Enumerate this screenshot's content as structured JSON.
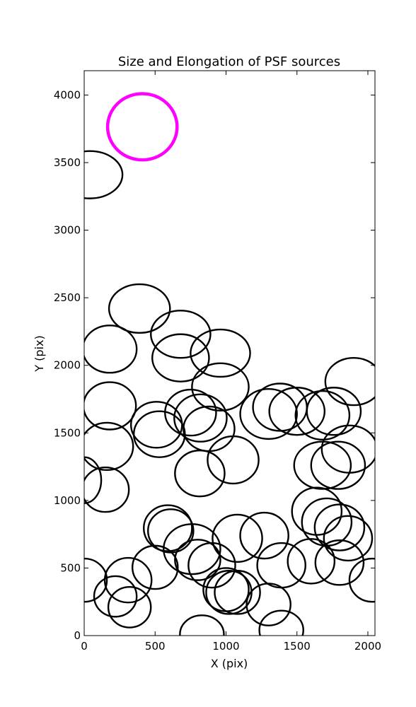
{
  "chart_data": {
    "type": "scatter",
    "title": "Size and Elongation of PSF sources",
    "xlabel": "X (pix)",
    "ylabel": "Y (pix)",
    "xlim": [
      0,
      2050
    ],
    "ylim": [
      0,
      4180
    ],
    "x_ticks": [
      0,
      500,
      1000,
      1500,
      2000
    ],
    "y_ticks": [
      0,
      500,
      1000,
      1500,
      2000,
      2500,
      3000,
      3500,
      4000
    ],
    "grid": false,
    "legend": "none",
    "colors": {
      "sources": "#000000",
      "reference": "#ff00ff",
      "axes": "#000000"
    },
    "reference_ellipse": {
      "x": 410,
      "y": 3765,
      "rx": 245,
      "ry": 245,
      "angle": 0
    },
    "ellipses": [
      {
        "x": 40,
        "y": 3410,
        "rx": 230,
        "ry": 175,
        "angle": 0
      },
      {
        "x": 390,
        "y": 2420,
        "rx": 215,
        "ry": 180,
        "angle": 0
      },
      {
        "x": 180,
        "y": 2120,
        "rx": 190,
        "ry": 175,
        "angle": 0
      },
      {
        "x": 680,
        "y": 2230,
        "rx": 210,
        "ry": 175,
        "angle": 0
      },
      {
        "x": 680,
        "y": 2055,
        "rx": 200,
        "ry": 175,
        "angle": 0
      },
      {
        "x": 960,
        "y": 2090,
        "rx": 210,
        "ry": 175,
        "angle": 0
      },
      {
        "x": 960,
        "y": 1840,
        "rx": 200,
        "ry": 175,
        "angle": 0
      },
      {
        "x": 1900,
        "y": 1880,
        "rx": 200,
        "ry": 175,
        "angle": 0
      },
      {
        "x": 180,
        "y": 1700,
        "rx": 185,
        "ry": 175,
        "angle": 0
      },
      {
        "x": 510,
        "y": 1560,
        "rx": 180,
        "ry": 170,
        "angle": 0
      },
      {
        "x": 530,
        "y": 1490,
        "rx": 180,
        "ry": 170,
        "angle": 0
      },
      {
        "x": 750,
        "y": 1650,
        "rx": 180,
        "ry": 170,
        "angle": 0
      },
      {
        "x": 820,
        "y": 1610,
        "rx": 185,
        "ry": 175,
        "angle": 0
      },
      {
        "x": 880,
        "y": 1530,
        "rx": 180,
        "ry": 165,
        "angle": 0
      },
      {
        "x": 1300,
        "y": 1640,
        "rx": 200,
        "ry": 185,
        "angle": 0
      },
      {
        "x": 1380,
        "y": 1690,
        "rx": 190,
        "ry": 175,
        "angle": 0
      },
      {
        "x": 1500,
        "y": 1660,
        "rx": 195,
        "ry": 175,
        "angle": 0
      },
      {
        "x": 1680,
        "y": 1630,
        "rx": 190,
        "ry": 180,
        "angle": 0
      },
      {
        "x": 1760,
        "y": 1660,
        "rx": 190,
        "ry": 175,
        "angle": 0
      },
      {
        "x": 160,
        "y": 1400,
        "rx": 185,
        "ry": 175,
        "angle": 0
      },
      {
        "x": 0,
        "y": 1150,
        "rx": 120,
        "ry": 170,
        "angle": 0
      },
      {
        "x": 150,
        "y": 1080,
        "rx": 165,
        "ry": 165,
        "angle": 0
      },
      {
        "x": 815,
        "y": 1200,
        "rx": 175,
        "ry": 170,
        "angle": 0
      },
      {
        "x": 1050,
        "y": 1300,
        "rx": 180,
        "ry": 175,
        "angle": 0
      },
      {
        "x": 1680,
        "y": 1260,
        "rx": 200,
        "ry": 175,
        "angle": 0
      },
      {
        "x": 1790,
        "y": 1260,
        "rx": 190,
        "ry": 175,
        "angle": 0
      },
      {
        "x": 1870,
        "y": 1380,
        "rx": 195,
        "ry": 175,
        "angle": 0
      },
      {
        "x": 590,
        "y": 795,
        "rx": 170,
        "ry": 170,
        "angle": 0
      },
      {
        "x": 610,
        "y": 775,
        "rx": 160,
        "ry": 160,
        "angle": 0
      },
      {
        "x": 500,
        "y": 505,
        "rx": 160,
        "ry": 160,
        "angle": 0
      },
      {
        "x": 760,
        "y": 640,
        "rx": 200,
        "ry": 185,
        "angle": 0
      },
      {
        "x": 800,
        "y": 560,
        "rx": 160,
        "ry": 150,
        "angle": 0
      },
      {
        "x": 900,
        "y": 520,
        "rx": 165,
        "ry": 165,
        "angle": 0
      },
      {
        "x": 1080,
        "y": 720,
        "rx": 175,
        "ry": 175,
        "angle": 0
      },
      {
        "x": 1270,
        "y": 740,
        "rx": 170,
        "ry": 170,
        "angle": 0
      },
      {
        "x": 1390,
        "y": 520,
        "rx": 170,
        "ry": 165,
        "angle": 0
      },
      {
        "x": 1600,
        "y": 550,
        "rx": 165,
        "ry": 165,
        "angle": 0
      },
      {
        "x": 1640,
        "y": 920,
        "rx": 175,
        "ry": 175,
        "angle": 0
      },
      {
        "x": 1710,
        "y": 840,
        "rx": 175,
        "ry": 175,
        "angle": 0
      },
      {
        "x": 1800,
        "y": 800,
        "rx": 175,
        "ry": 170,
        "angle": 0
      },
      {
        "x": 1860,
        "y": 720,
        "rx": 170,
        "ry": 165,
        "angle": 0
      },
      {
        "x": 1800,
        "y": 540,
        "rx": 170,
        "ry": 165,
        "angle": 0
      },
      {
        "x": 2030,
        "y": 410,
        "rx": 160,
        "ry": 160,
        "angle": 0
      },
      {
        "x": 0,
        "y": 410,
        "rx": 160,
        "ry": 160,
        "angle": 0
      },
      {
        "x": 310,
        "y": 410,
        "rx": 165,
        "ry": 165,
        "angle": 0
      },
      {
        "x": 220,
        "y": 290,
        "rx": 150,
        "ry": 150,
        "angle": 0
      },
      {
        "x": 320,
        "y": 210,
        "rx": 150,
        "ry": 150,
        "angle": 0
      },
      {
        "x": 1000,
        "y": 340,
        "rx": 160,
        "ry": 160,
        "angle": 0
      },
      {
        "x": 1020,
        "y": 320,
        "rx": 160,
        "ry": 160,
        "angle": 0
      },
      {
        "x": 1080,
        "y": 320,
        "rx": 160,
        "ry": 160,
        "angle": 0
      },
      {
        "x": 1300,
        "y": 230,
        "rx": 155,
        "ry": 155,
        "angle": 0
      },
      {
        "x": 830,
        "y": 10,
        "rx": 155,
        "ry": 140,
        "angle": 0
      },
      {
        "x": 1390,
        "y": 40,
        "rx": 155,
        "ry": 145,
        "angle": 0
      }
    ]
  }
}
